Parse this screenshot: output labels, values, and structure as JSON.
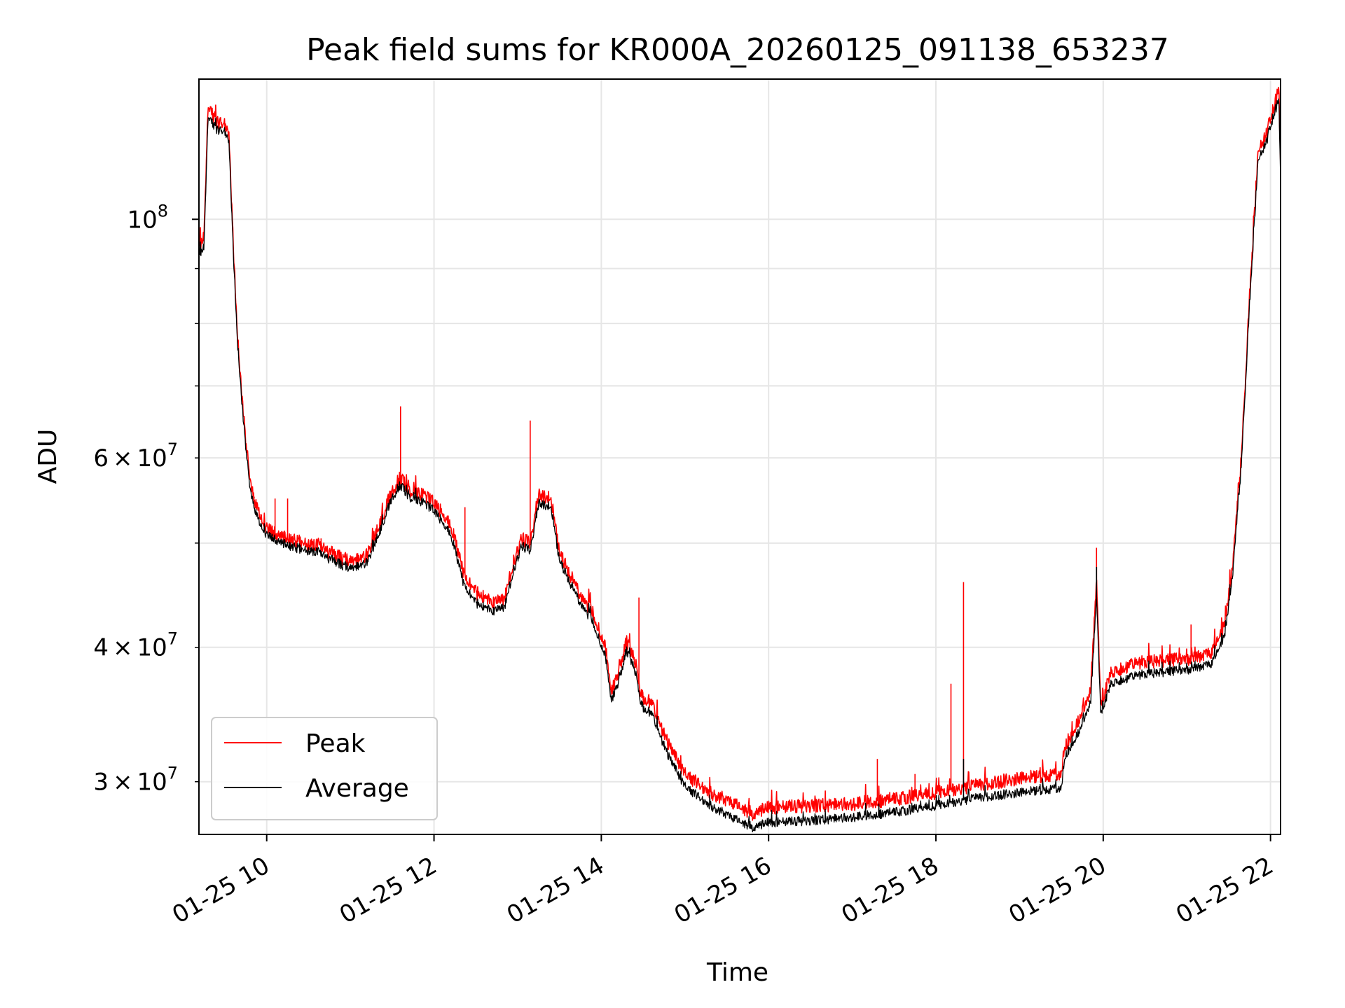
{
  "chart_data": {
    "type": "line",
    "title": "Peak field sums for KR000A_20260125_091138_653237",
    "xlabel": "Time",
    "ylabel": "ADU",
    "yscale": "log",
    "ylim": [
      26800000,
      135000000
    ],
    "xlim_hours": [
      9.19,
      22.12
    ],
    "grid": true,
    "legend_position": "lower-left",
    "x_ticks": [
      {
        "hour": 10,
        "label": "01-25 10"
      },
      {
        "hour": 12,
        "label": "01-25 12"
      },
      {
        "hour": 14,
        "label": "01-25 14"
      },
      {
        "hour": 16,
        "label": "01-25 16"
      },
      {
        "hour": 18,
        "label": "01-25 18"
      },
      {
        "hour": 20,
        "label": "01-25 20"
      },
      {
        "hour": 22,
        "label": "01-25 22"
      }
    ],
    "y_major_ticks": [
      {
        "value": 100000000,
        "base": "10",
        "exp": "8"
      }
    ],
    "y_minor_ticks": [
      {
        "value": 30000000,
        "mantissa": "3",
        "base": "10",
        "exp": "7"
      },
      {
        "value": 40000000,
        "mantissa": "4",
        "base": "10",
        "exp": "7"
      },
      {
        "value": 60000000,
        "mantissa": "6",
        "base": "10",
        "exp": "7"
      }
    ],
    "y_unlabeled_minor": [
      50000000,
      70000000,
      80000000,
      90000000
    ],
    "series": [
      {
        "name": "Peak",
        "color": "#ff0000",
        "points": [
          [
            9.19,
            95000000
          ],
          [
            9.25,
            96000000
          ],
          [
            9.3,
            128000000
          ],
          [
            9.4,
            123000000
          ],
          [
            9.5,
            123000000
          ],
          [
            9.55,
            120000000
          ],
          [
            9.6,
            95000000
          ],
          [
            9.65,
            78000000
          ],
          [
            9.72,
            66000000
          ],
          [
            9.8,
            57000000
          ],
          [
            9.9,
            53500000
          ],
          [
            10.0,
            51500000
          ],
          [
            10.3,
            50300000
          ],
          [
            10.6,
            49700000
          ],
          [
            11.0,
            48000000
          ],
          [
            11.2,
            48800000
          ],
          [
            11.35,
            52000000
          ],
          [
            11.5,
            56000000
          ],
          [
            11.6,
            57500000
          ],
          [
            11.7,
            56000000
          ],
          [
            11.85,
            55500000
          ],
          [
            12.0,
            54500000
          ],
          [
            12.2,
            52000000
          ],
          [
            12.35,
            47000000
          ],
          [
            12.5,
            45000000
          ],
          [
            12.7,
            44000000
          ],
          [
            12.85,
            44500000
          ],
          [
            12.95,
            48000000
          ],
          [
            13.05,
            50500000
          ],
          [
            13.15,
            50000000
          ],
          [
            13.25,
            55500000
          ],
          [
            13.4,
            55000000
          ],
          [
            13.5,
            49000000
          ],
          [
            13.7,
            45500000
          ],
          [
            13.9,
            43000000
          ],
          [
            14.05,
            40000000
          ],
          [
            14.12,
            36500000
          ],
          [
            14.2,
            37500000
          ],
          [
            14.3,
            40500000
          ],
          [
            14.4,
            39000000
          ],
          [
            14.48,
            36000000
          ],
          [
            14.6,
            35500000
          ],
          [
            14.8,
            32500000
          ],
          [
            15.0,
            30500000
          ],
          [
            15.3,
            29300000
          ],
          [
            15.6,
            28600000
          ],
          [
            15.82,
            28000000
          ],
          [
            16.0,
            28400000
          ],
          [
            16.5,
            28500000
          ],
          [
            17.0,
            28600000
          ],
          [
            17.5,
            28900000
          ],
          [
            18.0,
            29300000
          ],
          [
            18.5,
            29800000
          ],
          [
            19.0,
            30200000
          ],
          [
            19.5,
            30500000
          ],
          [
            19.55,
            32500000
          ],
          [
            19.7,
            34000000
          ],
          [
            19.85,
            36500000
          ],
          [
            19.92,
            46000000
          ],
          [
            19.97,
            35500000
          ],
          [
            20.1,
            38000000
          ],
          [
            20.5,
            38800000
          ],
          [
            21.0,
            39000000
          ],
          [
            21.3,
            39500000
          ],
          [
            21.45,
            42000000
          ],
          [
            21.55,
            48000000
          ],
          [
            21.65,
            60000000
          ],
          [
            21.75,
            85000000
          ],
          [
            21.85,
            115000000
          ],
          [
            21.95,
            120000000
          ],
          [
            22.05,
            128000000
          ],
          [
            22.1,
            132000000
          ],
          [
            22.12,
            112000000
          ]
        ],
        "spikes": [
          [
            9.85,
            55000000
          ],
          [
            10.1,
            55000000
          ],
          [
            10.25,
            55000000
          ],
          [
            10.65,
            50500000
          ],
          [
            11.6,
            67000000
          ],
          [
            12.37,
            54000000
          ],
          [
            13.15,
            65000000
          ],
          [
            14.45,
            44500000
          ],
          [
            17.3,
            31500000
          ],
          [
            17.75,
            30500000
          ],
          [
            18.18,
            37000000
          ],
          [
            18.33,
            46000000
          ],
          [
            19.92,
            49500000
          ],
          [
            21.05,
            42000000
          ]
        ]
      },
      {
        "name": "Average",
        "color": "#000000",
        "points": [
          [
            9.19,
            93000000
          ],
          [
            9.25,
            94000000
          ],
          [
            9.3,
            125000000
          ],
          [
            9.4,
            121000000
          ],
          [
            9.5,
            121000000
          ],
          [
            9.55,
            118000000
          ],
          [
            9.6,
            93500000
          ],
          [
            9.65,
            77000000
          ],
          [
            9.72,
            65000000
          ],
          [
            9.8,
            56000000
          ],
          [
            9.9,
            52500000
          ],
          [
            10.0,
            50800000
          ],
          [
            10.3,
            49600000
          ],
          [
            10.6,
            49000000
          ],
          [
            11.0,
            47300000
          ],
          [
            11.2,
            48000000
          ],
          [
            11.35,
            51200000
          ],
          [
            11.5,
            55200000
          ],
          [
            11.6,
            56600000
          ],
          [
            11.7,
            55200000
          ],
          [
            11.85,
            54600000
          ],
          [
            12.0,
            53600000
          ],
          [
            12.2,
            51000000
          ],
          [
            12.35,
            46000000
          ],
          [
            12.5,
            44000000
          ],
          [
            12.7,
            43200000
          ],
          [
            12.85,
            43700000
          ],
          [
            12.95,
            47200000
          ],
          [
            13.05,
            49700000
          ],
          [
            13.15,
            49200000
          ],
          [
            13.25,
            54500000
          ],
          [
            13.4,
            54000000
          ],
          [
            13.5,
            48200000
          ],
          [
            13.7,
            44700000
          ],
          [
            13.9,
            42200000
          ],
          [
            14.05,
            39200000
          ],
          [
            14.12,
            35800000
          ],
          [
            14.2,
            36800000
          ],
          [
            14.3,
            39700000
          ],
          [
            14.4,
            38200000
          ],
          [
            14.48,
            35300000
          ],
          [
            14.6,
            34700000
          ],
          [
            14.8,
            31700000
          ],
          [
            15.0,
            29700000
          ],
          [
            15.3,
            28500000
          ],
          [
            15.6,
            27700000
          ],
          [
            15.82,
            27200000
          ],
          [
            16.0,
            27500000
          ],
          [
            16.5,
            27600000
          ],
          [
            17.0,
            27800000
          ],
          [
            17.5,
            28100000
          ],
          [
            18.0,
            28500000
          ],
          [
            18.5,
            29000000
          ],
          [
            19.0,
            29300000
          ],
          [
            19.5,
            29600000
          ],
          [
            19.55,
            31800000
          ],
          [
            19.7,
            33200000
          ],
          [
            19.85,
            35600000
          ],
          [
            19.92,
            44500000
          ],
          [
            19.97,
            34800000
          ],
          [
            20.1,
            37100000
          ],
          [
            20.5,
            37800000
          ],
          [
            21.0,
            38100000
          ],
          [
            21.3,
            38600000
          ],
          [
            21.45,
            41000000
          ],
          [
            21.55,
            47000000
          ],
          [
            21.65,
            59000000
          ],
          [
            21.75,
            83500000
          ],
          [
            21.85,
            113000000
          ],
          [
            21.95,
            118000000
          ],
          [
            22.05,
            126000000
          ],
          [
            22.1,
            129000000
          ],
          [
            22.12,
            109000000
          ]
        ],
        "spikes": [
          [
            18.33,
            31500000
          ],
          [
            19.92,
            47500000
          ]
        ]
      }
    ]
  }
}
